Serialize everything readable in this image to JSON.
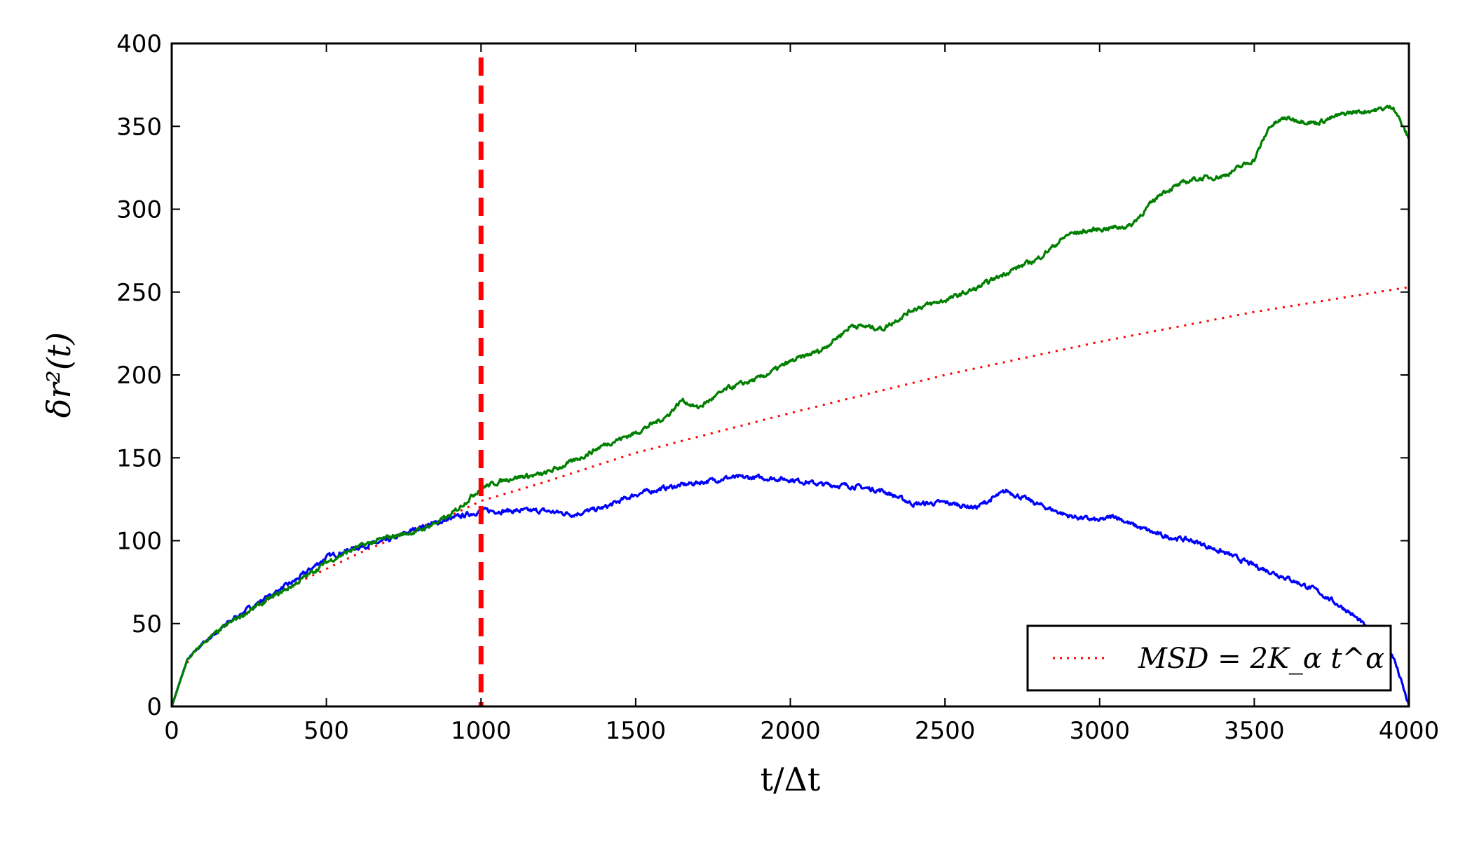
{
  "chart_data": {
    "type": "line",
    "title": "",
    "xlabel": "t/Δt",
    "ylabel": "δr²(t)",
    "xlim": [
      0,
      4000
    ],
    "ylim": [
      0,
      400
    ],
    "xticks": [
      0,
      500,
      1000,
      1500,
      2000,
      2500,
      3000,
      3500,
      4000
    ],
    "yticks": [
      0,
      50,
      100,
      150,
      200,
      250,
      300,
      350,
      400
    ],
    "grid": false,
    "legend": {
      "placement": "bottom-right",
      "label": "MSD = 2K_α t^α",
      "series": "MSD"
    },
    "series": [
      {
        "name": "MSD",
        "style": "dotted",
        "color": "#ff0000",
        "x": [
          0,
          50,
          100,
          200,
          300,
          400,
          500,
          600,
          700,
          800,
          900,
          1000,
          1200,
          1500,
          2000,
          2500,
          3000,
          3500,
          4000
        ],
        "y": [
          0,
          28,
          38,
          52,
          63,
          74,
          83,
          92,
          100,
          108,
          115,
          124,
          135,
          153,
          177,
          200,
          220,
          238,
          253
        ]
      },
      {
        "style": "solid",
        "color": "#007f00",
        "x": [
          0,
          50,
          100,
          200,
          300,
          400,
          500,
          600,
          700,
          800,
          900,
          1000,
          1100,
          1200,
          1300,
          1400,
          1500,
          1600,
          1650,
          1700,
          1800,
          1900,
          2000,
          2100,
          2200,
          2300,
          2400,
          2500,
          2600,
          2700,
          2800,
          2900,
          3000,
          3100,
          3200,
          3300,
          3400,
          3500,
          3550,
          3600,
          3700,
          3800,
          3900,
          3950,
          4000
        ],
        "y": [
          0,
          28,
          38,
          52,
          63,
          74,
          87,
          96,
          102,
          106,
          115,
          132,
          138,
          140,
          148,
          158,
          165,
          175,
          185,
          180,
          192,
          198,
          208,
          215,
          230,
          228,
          240,
          245,
          252,
          262,
          270,
          285,
          288,
          290,
          310,
          318,
          320,
          330,
          350,
          355,
          352,
          358,
          360,
          362,
          342
        ]
      },
      {
        "style": "solid",
        "color": "#0000ff",
        "x": [
          0,
          50,
          100,
          200,
          300,
          400,
          500,
          600,
          700,
          800,
          900,
          1000,
          1100,
          1200,
          1300,
          1400,
          1500,
          1600,
          1700,
          1800,
          1900,
          2000,
          2100,
          2200,
          2300,
          2400,
          2500,
          2600,
          2700,
          2800,
          2900,
          3000,
          3050,
          3100,
          3200,
          3300,
          3400,
          3500,
          3600,
          3700,
          3800,
          3850,
          3900,
          3950,
          4000
        ],
        "y": [
          0,
          28,
          38,
          53,
          65,
          76,
          90,
          96,
          100,
          108,
          113,
          118,
          118,
          118,
          116,
          120,
          128,
          132,
          135,
          138,
          138,
          137,
          134,
          133,
          130,
          122,
          123,
          120,
          130,
          122,
          115,
          112,
          115,
          110,
          103,
          100,
          93,
          85,
          78,
          70,
          58,
          50,
          40,
          30,
          0
        ]
      }
    ],
    "annotations": [
      {
        "type": "vline",
        "x": 1000,
        "style": "dashed",
        "color": "#ff0000"
      }
    ]
  }
}
